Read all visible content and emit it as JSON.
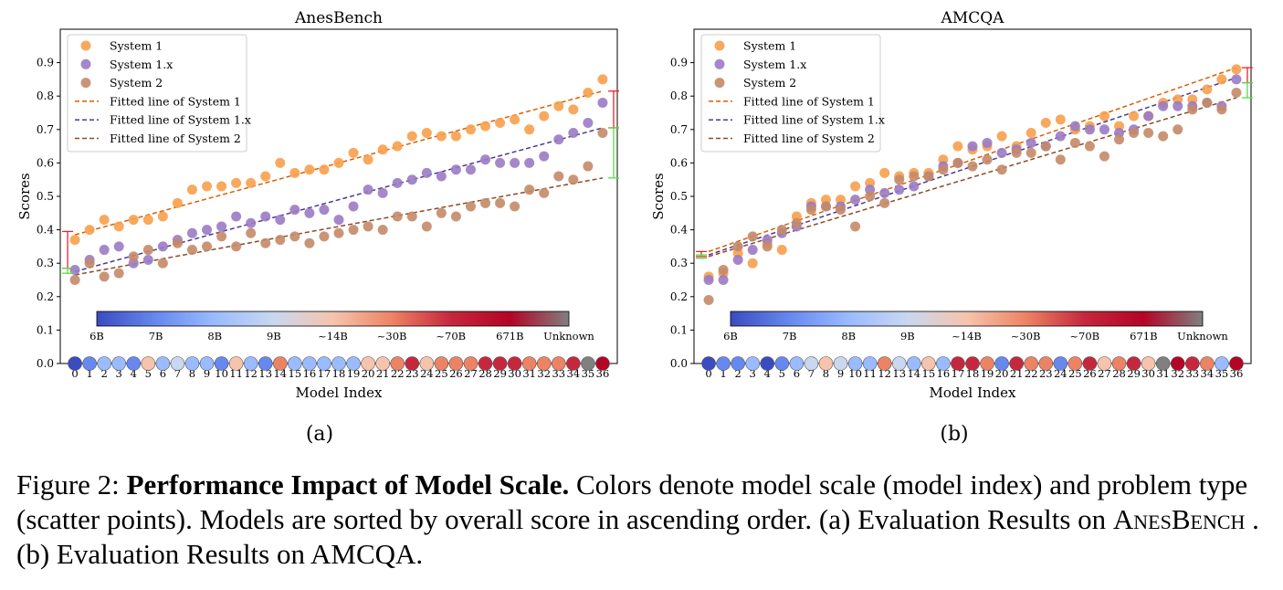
{
  "colors": {
    "system1": "#f7a04c",
    "system1x": "#9a7bc4",
    "system2": "#c48a68",
    "fit1": "#d95f02",
    "fit1x": "#4a3a8f",
    "fit2": "#8c4a26",
    "red_bracket": "#e8252b",
    "green_bracket": "#55dd44",
    "scale_colors": [
      "#3a4cc0",
      "#6788ee",
      "#9abbff",
      "#c9d7f0",
      "#f6c4ad",
      "#ed8365",
      "#c5283d",
      "#b40426",
      "#808080"
    ]
  },
  "legend": [
    "System 1",
    "System 1.x",
    "System 2",
    "Fitted line of System 1",
    "Fitted line of System 1.x",
    "Fitted line of System 2"
  ],
  "colorbar_labels": [
    "6B",
    "7B",
    "8B",
    "9B",
    "~14B",
    "~30B",
    "~70B",
    "671B",
    "Unknown"
  ],
  "panel_labels": [
    "(a)",
    "(b)"
  ],
  "caption": {
    "prefix": "Figure 2: ",
    "bold": "Performance Impact of Model Scale.",
    "text1": " Colors denote model scale (model index) and problem type (scatter points). Models are sorted by overall score in ascending order. (a) Evaluation Results on ",
    "smallcaps": "AnesBench",
    "text2": " . (b) Evaluation Results on AMCQA."
  },
  "chart_data": [
    {
      "type": "scatter",
      "title": "AnesBench",
      "xlabel": "Model Index",
      "ylabel": "Scores",
      "x": [
        0,
        1,
        2,
        3,
        4,
        5,
        6,
        7,
        8,
        9,
        10,
        11,
        12,
        13,
        14,
        15,
        16,
        17,
        18,
        19,
        20,
        21,
        22,
        23,
        24,
        25,
        26,
        27,
        28,
        29,
        30,
        31,
        32,
        33,
        34,
        35,
        36
      ],
      "xlim": [
        -1,
        37
      ],
      "ylim": [
        0,
        1.0
      ],
      "yticks": [
        "0.0",
        "0.1",
        "0.2",
        "0.3",
        "0.4",
        "0.5",
        "0.6",
        "0.7",
        "0.8",
        "0.9"
      ],
      "legend_position": "top-left",
      "model_scale_index": [
        0,
        1,
        2,
        2,
        1,
        4,
        2,
        3,
        2,
        2,
        1,
        4,
        2,
        1,
        5,
        2,
        2,
        2,
        2,
        2,
        4,
        4,
        5,
        6,
        4,
        5,
        5,
        5,
        6,
        6,
        6,
        5,
        5,
        5,
        6,
        8,
        7
      ],
      "series": [
        {
          "name": "System 1",
          "values": [
            0.37,
            0.4,
            0.43,
            0.41,
            0.43,
            0.43,
            0.44,
            0.48,
            0.52,
            0.53,
            0.53,
            0.54,
            0.54,
            0.56,
            0.6,
            0.57,
            0.58,
            0.58,
            0.6,
            0.63,
            0.61,
            0.64,
            0.65,
            0.68,
            0.69,
            0.68,
            0.68,
            0.7,
            0.71,
            0.72,
            0.73,
            0.7,
            0.74,
            0.77,
            0.76,
            0.81,
            0.85
          ]
        },
        {
          "name": "System 1.x",
          "values": [
            0.28,
            0.31,
            0.34,
            0.35,
            0.3,
            0.31,
            0.35,
            0.37,
            0.39,
            0.4,
            0.41,
            0.44,
            0.42,
            0.44,
            0.43,
            0.46,
            0.45,
            0.46,
            0.43,
            0.47,
            0.52,
            0.51,
            0.54,
            0.55,
            0.57,
            0.56,
            0.58,
            0.58,
            0.61,
            0.6,
            0.6,
            0.6,
            0.62,
            0.67,
            0.69,
            0.72,
            0.78
          ]
        },
        {
          "name": "System 2",
          "values": [
            0.25,
            0.3,
            0.26,
            0.27,
            0.32,
            0.34,
            0.3,
            0.36,
            0.34,
            0.35,
            0.38,
            0.35,
            0.39,
            0.36,
            0.37,
            0.38,
            0.36,
            0.38,
            0.39,
            0.4,
            0.41,
            0.4,
            0.44,
            0.44,
            0.41,
            0.45,
            0.44,
            0.47,
            0.48,
            0.48,
            0.47,
            0.52,
            0.51,
            0.56,
            0.55,
            0.59,
            0.69
          ]
        }
      ],
      "fits": [
        {
          "name": "Fitted line of System 1",
          "start": 0.385,
          "end": 0.815
        },
        {
          "name": "Fitted line of System 1.x",
          "start": 0.275,
          "end": 0.705
        },
        {
          "name": "Fitted line of System 2",
          "start": 0.265,
          "end": 0.555
        }
      ],
      "brackets": {
        "red_left": [
          0.285,
          0.395
        ],
        "green_left": [
          0.27,
          0.285
        ],
        "red_right": [
          0.705,
          0.815
        ],
        "green_right": [
          0.555,
          0.705
        ]
      }
    },
    {
      "type": "scatter",
      "title": "AMCQA",
      "xlabel": "Model Index",
      "ylabel": "Scores",
      "x": [
        0,
        1,
        2,
        3,
        4,
        5,
        6,
        7,
        8,
        9,
        10,
        11,
        12,
        13,
        14,
        15,
        16,
        17,
        18,
        19,
        20,
        21,
        22,
        23,
        24,
        25,
        26,
        27,
        28,
        29,
        30,
        31,
        32,
        33,
        34,
        35,
        36
      ],
      "xlim": [
        -1,
        37
      ],
      "ylim": [
        0,
        1.0
      ],
      "yticks": [
        "0.0",
        "0.1",
        "0.2",
        "0.3",
        "0.4",
        "0.5",
        "0.6",
        "0.7",
        "0.8",
        "0.9"
      ],
      "legend_position": "top-left",
      "model_scale_index": [
        0,
        1,
        1,
        2,
        0,
        1,
        2,
        3,
        4,
        3,
        2,
        2,
        5,
        3,
        2,
        4,
        2,
        6,
        6,
        5,
        1,
        6,
        5,
        5,
        1,
        5,
        6,
        4,
        5,
        6,
        4,
        8,
        7,
        6,
        5,
        2,
        7
      ],
      "series": [
        {
          "name": "System 1",
          "values": [
            0.26,
            0.27,
            0.33,
            0.3,
            0.36,
            0.34,
            0.44,
            0.48,
            0.49,
            0.49,
            0.53,
            0.54,
            0.57,
            0.56,
            0.57,
            0.57,
            0.61,
            0.65,
            0.64,
            0.65,
            0.68,
            0.65,
            0.69,
            0.72,
            0.73,
            0.7,
            0.71,
            0.74,
            0.71,
            0.74,
            0.74,
            0.78,
            0.79,
            0.79,
            0.82,
            0.85,
            0.88
          ]
        },
        {
          "name": "System 1.x",
          "values": [
            0.25,
            0.25,
            0.31,
            0.34,
            0.37,
            0.39,
            0.41,
            0.47,
            0.47,
            0.47,
            0.49,
            0.52,
            0.51,
            0.52,
            0.53,
            0.56,
            0.59,
            0.6,
            0.65,
            0.66,
            0.63,
            0.64,
            0.66,
            0.65,
            0.68,
            0.71,
            0.7,
            0.7,
            0.69,
            0.7,
            0.74,
            0.77,
            0.77,
            0.77,
            0.78,
            0.77,
            0.85
          ]
        },
        {
          "name": "System 2",
          "values": [
            0.19,
            0.28,
            0.35,
            0.38,
            0.35,
            0.4,
            0.42,
            0.46,
            0.47,
            0.46,
            0.41,
            0.5,
            0.48,
            0.55,
            0.56,
            0.56,
            0.58,
            0.6,
            0.59,
            0.61,
            0.58,
            0.63,
            0.63,
            0.65,
            0.61,
            0.66,
            0.65,
            0.62,
            0.67,
            0.69,
            0.69,
            0.68,
            0.7,
            0.76,
            0.78,
            0.76,
            0.81
          ]
        }
      ],
      "fits": [
        {
          "name": "Fitted line of System 1",
          "start": 0.335,
          "end": 0.885
        },
        {
          "name": "Fitted line of System 1.x",
          "start": 0.325,
          "end": 0.855
        },
        {
          "name": "Fitted line of System 2",
          "start": 0.32,
          "end": 0.795
        }
      ],
      "brackets": {
        "red_left": [
          0.32,
          0.335
        ],
        "green_left": [
          0.315,
          0.325
        ],
        "red_right": [
          0.84,
          0.885
        ],
        "green_right": [
          0.795,
          0.84
        ]
      }
    }
  ]
}
